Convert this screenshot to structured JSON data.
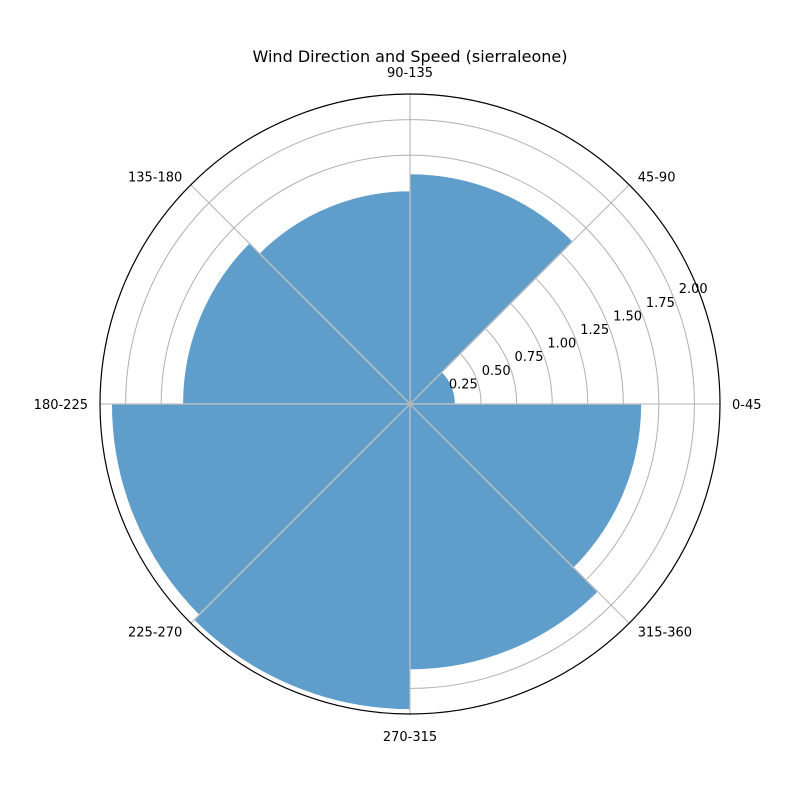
{
  "chart_data": {
    "type": "bar",
    "projection": "polar",
    "title": "Wind Direction and Speed (sierraleone)",
    "categories": [
      "0-45",
      "45-90",
      "90-135",
      "135-180",
      "180-225",
      "225-270",
      "270-315",
      "315-360"
    ],
    "values": [
      0.32,
      1.62,
      1.5,
      1.6,
      2.1,
      2.15,
      1.87,
      1.63
    ],
    "radial_ticks": [
      "0.25",
      "0.50",
      "0.75",
      "1.00",
      "1.25",
      "1.50",
      "1.75",
      "2.00"
    ],
    "radial_tick_values": [
      0.25,
      0.5,
      0.75,
      1.0,
      1.25,
      1.5,
      1.75,
      2.0
    ],
    "rlim": [
      0,
      2.18
    ],
    "bar_color": "#5f9ecb",
    "grid": true
  }
}
